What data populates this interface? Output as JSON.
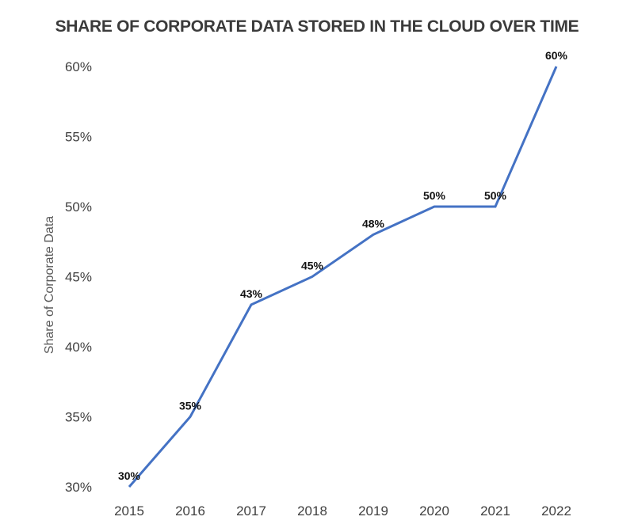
{
  "chart_data": {
    "type": "line",
    "title": "SHARE OF CORPORATE DATA STORED IN THE CLOUD OVER TIME",
    "xlabel": "",
    "ylabel": "Share of Corporate Data",
    "categories": [
      "2015",
      "2016",
      "2017",
      "2018",
      "2019",
      "2020",
      "2021",
      "2022"
    ],
    "series": [
      {
        "name": "Share of Corporate Data",
        "values": [
          30,
          35,
          43,
          45,
          48,
          50,
          50,
          60
        ],
        "data_labels": [
          "30%",
          "35%",
          "43%",
          "45%",
          "48%",
          "50%",
          "50%",
          "60%"
        ],
        "color": "#4472c4"
      }
    ],
    "ylim": [
      30,
      60
    ],
    "yticks": [
      30,
      35,
      40,
      45,
      50,
      55,
      60
    ],
    "ytick_labels": [
      "30%",
      "35%",
      "40%",
      "45%",
      "50%",
      "55%",
      "60%"
    ],
    "grid": false,
    "legend": "none"
  }
}
